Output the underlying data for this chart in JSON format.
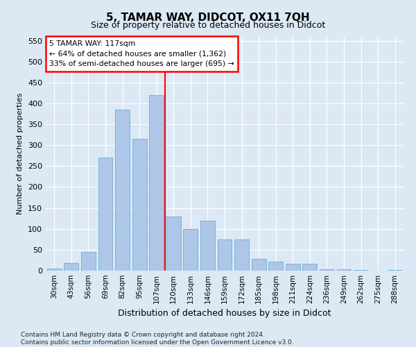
{
  "title": "5, TAMAR WAY, DIDCOT, OX11 7QH",
  "subtitle": "Size of property relative to detached houses in Didcot",
  "xlabel": "Distribution of detached houses by size in Didcot",
  "ylabel": "Number of detached properties",
  "categories": [
    "30sqm",
    "43sqm",
    "56sqm",
    "69sqm",
    "82sqm",
    "95sqm",
    "107sqm",
    "120sqm",
    "133sqm",
    "146sqm",
    "159sqm",
    "172sqm",
    "185sqm",
    "198sqm",
    "211sqm",
    "224sqm",
    "236sqm",
    "249sqm",
    "262sqm",
    "275sqm",
    "288sqm"
  ],
  "values": [
    5,
    18,
    45,
    270,
    385,
    315,
    420,
    130,
    100,
    120,
    75,
    75,
    28,
    22,
    16,
    16,
    4,
    4,
    2,
    0,
    2
  ],
  "bar_color": "#aec6e8",
  "bar_edge_color": "#6aaed6",
  "property_line_color": "red",
  "annotation_text": "5 TAMAR WAY: 117sqm\n← 64% of detached houses are smaller (1,362)\n33% of semi-detached houses are larger (695) →",
  "annotation_box_facecolor": "white",
  "annotation_box_edgecolor": "red",
  "ylim": [
    0,
    560
  ],
  "yticks": [
    0,
    50,
    100,
    150,
    200,
    250,
    300,
    350,
    400,
    450,
    500,
    550
  ],
  "footer_line1": "Contains HM Land Registry data © Crown copyright and database right 2024.",
  "footer_line2": "Contains public sector information licensed under the Open Government Licence v3.0.",
  "bg_color": "#dce9f5",
  "plot_bg_color": "#dce9f5",
  "title_fontsize": 11,
  "subtitle_fontsize": 9,
  "ylabel_fontsize": 8,
  "xlabel_fontsize": 9
}
